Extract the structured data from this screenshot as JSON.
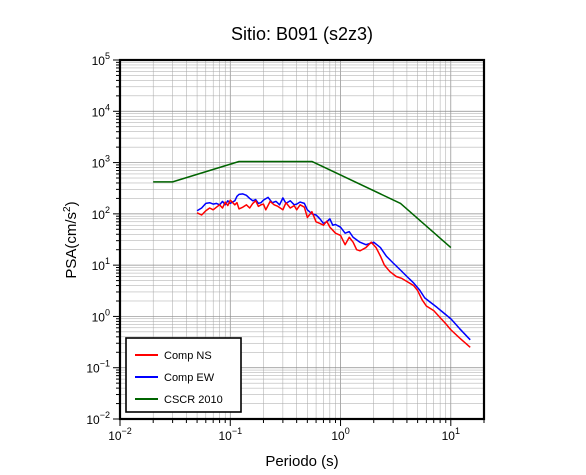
{
  "chart_data": {
    "type": "line",
    "title": "Sitio: B091 (s2z3)",
    "xlabel": "Periodo (s)",
    "ylabel": "PSA(cm/s",
    "ylabel_sup": "2",
    "ylabel_close": ")",
    "x_scale": "log",
    "y_scale": "log",
    "xlim": [
      0.01,
      20
    ],
    "ylim": [
      0.01,
      100000
    ],
    "grid": true,
    "legend_position": "bottom-left",
    "x_ticks": [
      {
        "base": "10",
        "exp": "−2",
        "value": 0.01
      },
      {
        "base": "10",
        "exp": "−1",
        "value": 0.1
      },
      {
        "base": "10",
        "exp": "0",
        "value": 1
      },
      {
        "base": "10",
        "exp": "1",
        "value": 10
      }
    ],
    "y_ticks": [
      {
        "base": "10",
        "exp": "−2",
        "value": 0.01
      },
      {
        "base": "10",
        "exp": "−1",
        "value": 0.1
      },
      {
        "base": "10",
        "exp": "0",
        "value": 1
      },
      {
        "base": "10",
        "exp": "1",
        "value": 10
      },
      {
        "base": "10",
        "exp": "2",
        "value": 100
      },
      {
        "base": "10",
        "exp": "3",
        "value": 1000
      },
      {
        "base": "10",
        "exp": "4",
        "value": 10000
      },
      {
        "base": "10",
        "exp": "5",
        "value": 100000
      }
    ],
    "series": [
      {
        "name": "Comp NS",
        "color": "#ff0000",
        "points": [
          [
            0.05,
            105
          ],
          [
            0.055,
            95
          ],
          [
            0.06,
            115
          ],
          [
            0.065,
            130
          ],
          [
            0.07,
            120
          ],
          [
            0.075,
            135
          ],
          [
            0.08,
            150
          ],
          [
            0.085,
            130
          ],
          [
            0.09,
            170
          ],
          [
            0.095,
            145
          ],
          [
            0.1,
            185
          ],
          [
            0.11,
            150
          ],
          [
            0.115,
            165
          ],
          [
            0.12,
            125
          ],
          [
            0.13,
            135
          ],
          [
            0.14,
            150
          ],
          [
            0.15,
            130
          ],
          [
            0.16,
            160
          ],
          [
            0.17,
            180
          ],
          [
            0.18,
            140
          ],
          [
            0.19,
            150
          ],
          [
            0.2,
            155
          ],
          [
            0.21,
            120
          ],
          [
            0.23,
            175
          ],
          [
            0.25,
            150
          ],
          [
            0.27,
            140
          ],
          [
            0.3,
            120
          ],
          [
            0.32,
            165
          ],
          [
            0.35,
            130
          ],
          [
            0.38,
            145
          ],
          [
            0.4,
            120
          ],
          [
            0.43,
            150
          ],
          [
            0.47,
            135
          ],
          [
            0.5,
            85
          ],
          [
            0.55,
            110
          ],
          [
            0.6,
            70
          ],
          [
            0.65,
            65
          ],
          [
            0.7,
            60
          ],
          [
            0.75,
            72
          ],
          [
            0.8,
            55
          ],
          [
            0.9,
            42
          ],
          [
            1.0,
            38
          ],
          [
            1.1,
            25
          ],
          [
            1.2,
            35
          ],
          [
            1.3,
            28
          ],
          [
            1.4,
            20
          ],
          [
            1.5,
            19
          ],
          [
            1.7,
            22
          ],
          [
            1.9,
            28
          ],
          [
            2.1,
            22
          ],
          [
            2.3,
            15
          ],
          [
            2.5,
            10
          ],
          [
            2.8,
            7.5
          ],
          [
            3.2,
            6
          ],
          [
            3.6,
            5.5
          ],
          [
            4.0,
            4.8
          ],
          [
            4.6,
            4.0
          ],
          [
            5.0,
            3.2
          ],
          [
            5.5,
            2.1
          ],
          [
            6.0,
            1.6
          ],
          [
            7.0,
            1.3
          ],
          [
            8.0,
            0.95
          ],
          [
            9.0,
            0.72
          ],
          [
            10.0,
            0.55
          ],
          [
            12.0,
            0.38
          ],
          [
            15.0,
            0.25
          ]
        ]
      },
      {
        "name": "Comp EW",
        "color": "#0000ff",
        "points": [
          [
            0.05,
            115
          ],
          [
            0.055,
            130
          ],
          [
            0.06,
            160
          ],
          [
            0.065,
            165
          ],
          [
            0.07,
            155
          ],
          [
            0.075,
            160
          ],
          [
            0.08,
            150
          ],
          [
            0.085,
            175
          ],
          [
            0.09,
            150
          ],
          [
            0.095,
            180
          ],
          [
            0.1,
            160
          ],
          [
            0.11,
            180
          ],
          [
            0.115,
            220
          ],
          [
            0.12,
            240
          ],
          [
            0.13,
            245
          ],
          [
            0.14,
            230
          ],
          [
            0.15,
            200
          ],
          [
            0.16,
            180
          ],
          [
            0.17,
            190
          ],
          [
            0.18,
            160
          ],
          [
            0.19,
            165
          ],
          [
            0.2,
            185
          ],
          [
            0.22,
            210
          ],
          [
            0.24,
            165
          ],
          [
            0.26,
            175
          ],
          [
            0.28,
            150
          ],
          [
            0.3,
            205
          ],
          [
            0.32,
            160
          ],
          [
            0.35,
            180
          ],
          [
            0.38,
            150
          ],
          [
            0.4,
            155
          ],
          [
            0.43,
            170
          ],
          [
            0.47,
            160
          ],
          [
            0.5,
            120
          ],
          [
            0.55,
            100
          ],
          [
            0.6,
            95
          ],
          [
            0.65,
            80
          ],
          [
            0.7,
            65
          ],
          [
            0.75,
            70
          ],
          [
            0.8,
            80
          ],
          [
            0.85,
            60
          ],
          [
            0.9,
            62
          ],
          [
            1.0,
            55
          ],
          [
            1.1,
            42
          ],
          [
            1.2,
            45
          ],
          [
            1.3,
            35
          ],
          [
            1.5,
            28
          ],
          [
            1.7,
            25
          ],
          [
            2.0,
            28
          ],
          [
            2.3,
            22
          ],
          [
            2.6,
            15
          ],
          [
            3.0,
            11
          ],
          [
            3.5,
            8
          ],
          [
            4.0,
            6
          ],
          [
            4.6,
            4.5
          ],
          [
            5.2,
            3.3
          ],
          [
            5.8,
            2.3
          ],
          [
            6.5,
            1.9
          ],
          [
            7.5,
            1.5
          ],
          [
            8.5,
            1.2
          ],
          [
            10.0,
            0.9
          ],
          [
            12.0,
            0.58
          ],
          [
            15.0,
            0.35
          ]
        ]
      },
      {
        "name": "CSCR 2010",
        "color": "#006400",
        "points": [
          [
            0.02,
            420
          ],
          [
            0.03,
            420
          ],
          [
            0.12,
            1050
          ],
          [
            0.55,
            1050
          ],
          [
            3.5,
            160
          ],
          [
            10.0,
            22
          ]
        ]
      }
    ]
  }
}
